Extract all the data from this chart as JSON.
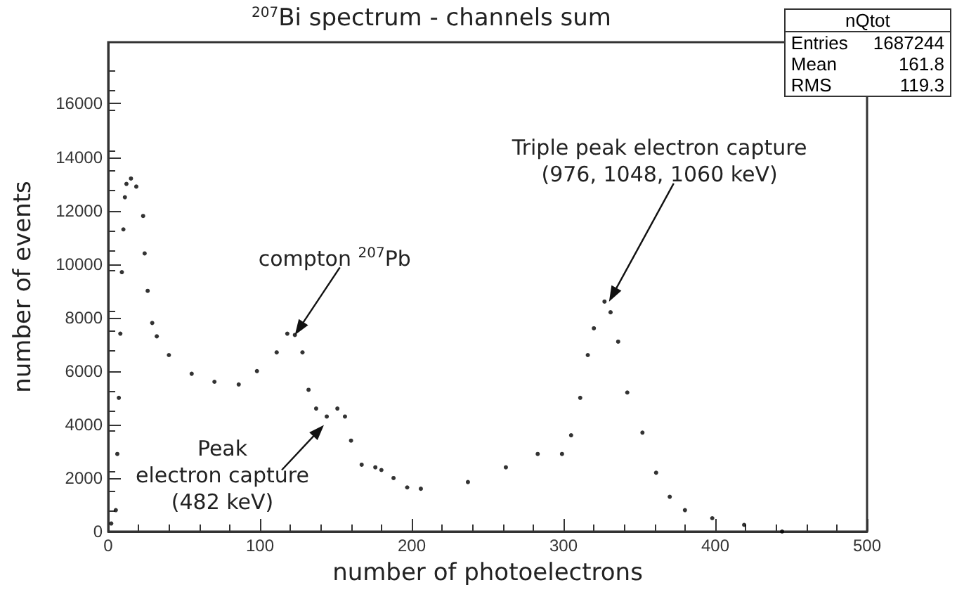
{
  "chart_data": {
    "type": "scatter",
    "title": "$^{207}$Bi spectrum - channels sum",
    "xlabel": "number of photoelectrons",
    "ylabel": "number of events",
    "xlim": [
      0,
      500
    ],
    "xticks": [
      0,
      100,
      200,
      300,
      400,
      500
    ],
    "ylim": [
      0,
      18300
    ],
    "yticks": [
      0,
      2000,
      4000,
      6000,
      8000,
      10000,
      12000,
      14000,
      16000
    ],
    "marker": "circle",
    "grid": false,
    "series": [
      {
        "color": "#000000",
        "x": [
          2,
          5,
          6,
          7,
          8,
          9,
          10,
          11,
          12,
          15,
          18.5,
          23,
          24,
          26,
          29,
          32,
          40,
          55,
          70,
          86,
          98,
          111,
          118,
          123,
          128,
          132,
          137,
          144,
          151,
          156,
          160,
          167,
          176,
          180,
          188,
          197,
          206,
          237,
          262,
          283,
          299,
          305,
          311,
          316,
          320,
          327,
          331,
          336,
          342,
          352,
          361,
          370,
          380,
          398,
          419,
          444
        ],
        "values": [
          300,
          800,
          2900,
          5000,
          7400,
          9700,
          11300,
          12500,
          13000,
          13200,
          12900,
          11800,
          10400,
          9000,
          7800,
          7300,
          6600,
          5900,
          5600,
          5500,
          6000,
          6700,
          7400,
          7350,
          6700,
          5300,
          4600,
          4300,
          4600,
          4300,
          3400,
          2500,
          2400,
          2300,
          2000,
          1650,
          1600,
          1850,
          2400,
          2900,
          2900,
          3600,
          5000,
          6600,
          7600,
          8600,
          8200,
          7100,
          5200,
          3700,
          2200,
          1300,
          800,
          500,
          250,
          0
        ]
      }
    ],
    "annotations": [
      {
        "text": "compton $^{207}$Pb",
        "x": 123,
        "y": 7350
      },
      {
        "text": "Peak\nelectron capture\n(482 keV)",
        "x": 144,
        "y": 4300
      },
      {
        "text": "Triple peak electron capture\n(976, 1048, 1060 keV)",
        "x": 330,
        "y": 8600
      },
      "nQtot",
      "Entries 1687244",
      "Mean 161.8",
      "RMS 119.3"
    ]
  }
}
